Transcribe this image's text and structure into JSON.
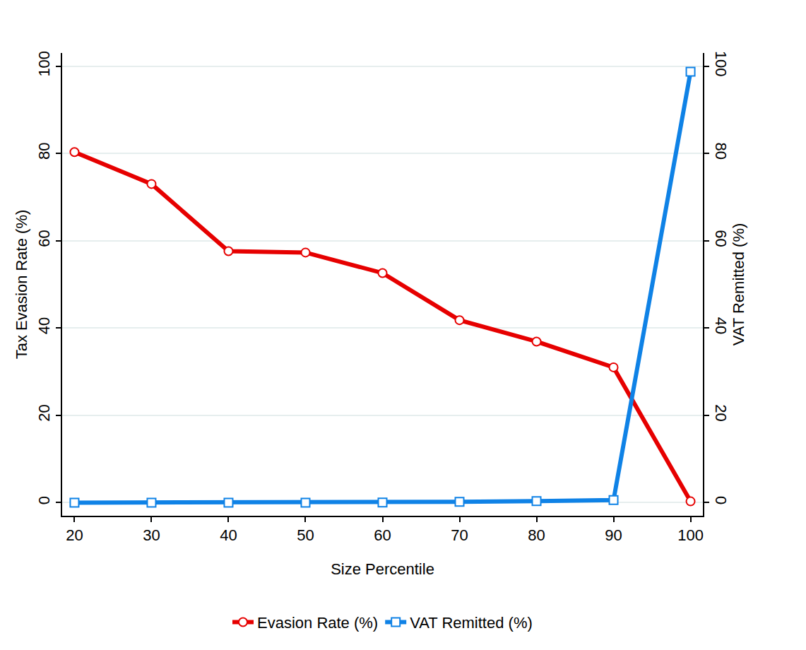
{
  "chart_data": {
    "type": "line",
    "x_label": "Size Percentile",
    "y_label": "Tax Evasion Rate (%)",
    "y2_label": "VAT Remitted (%)",
    "x": [
      20,
      30,
      40,
      50,
      60,
      70,
      80,
      90,
      100
    ],
    "series": [
      {
        "name": "Evasion Rate (%)",
        "color": "#e60000",
        "marker": "circle",
        "values": [
          80.3,
          73.0,
          57.6,
          57.3,
          52.6,
          41.8,
          36.9,
          31.0,
          0.3
        ]
      },
      {
        "name": "VAT Remitted (%)",
        "color": "#0f82e6",
        "marker": "square",
        "axis": "y2",
        "values": [
          0.0,
          0.0,
          0.0,
          0.0,
          0.05,
          0.2,
          0.35,
          0.6,
          98.7
        ]
      }
    ],
    "xlim": [
      18.4,
      101.6
    ],
    "xticks": [
      20,
      30,
      40,
      50,
      60,
      70,
      80,
      90,
      100
    ],
    "ylim": [
      -3,
      103
    ],
    "yticks": [
      0,
      20,
      40,
      60,
      80,
      100
    ],
    "y2lim": [
      -3,
      103
    ],
    "y2ticks": [
      0,
      20,
      40,
      60,
      80,
      100
    ],
    "grid": true,
    "legend": "bottom"
  }
}
